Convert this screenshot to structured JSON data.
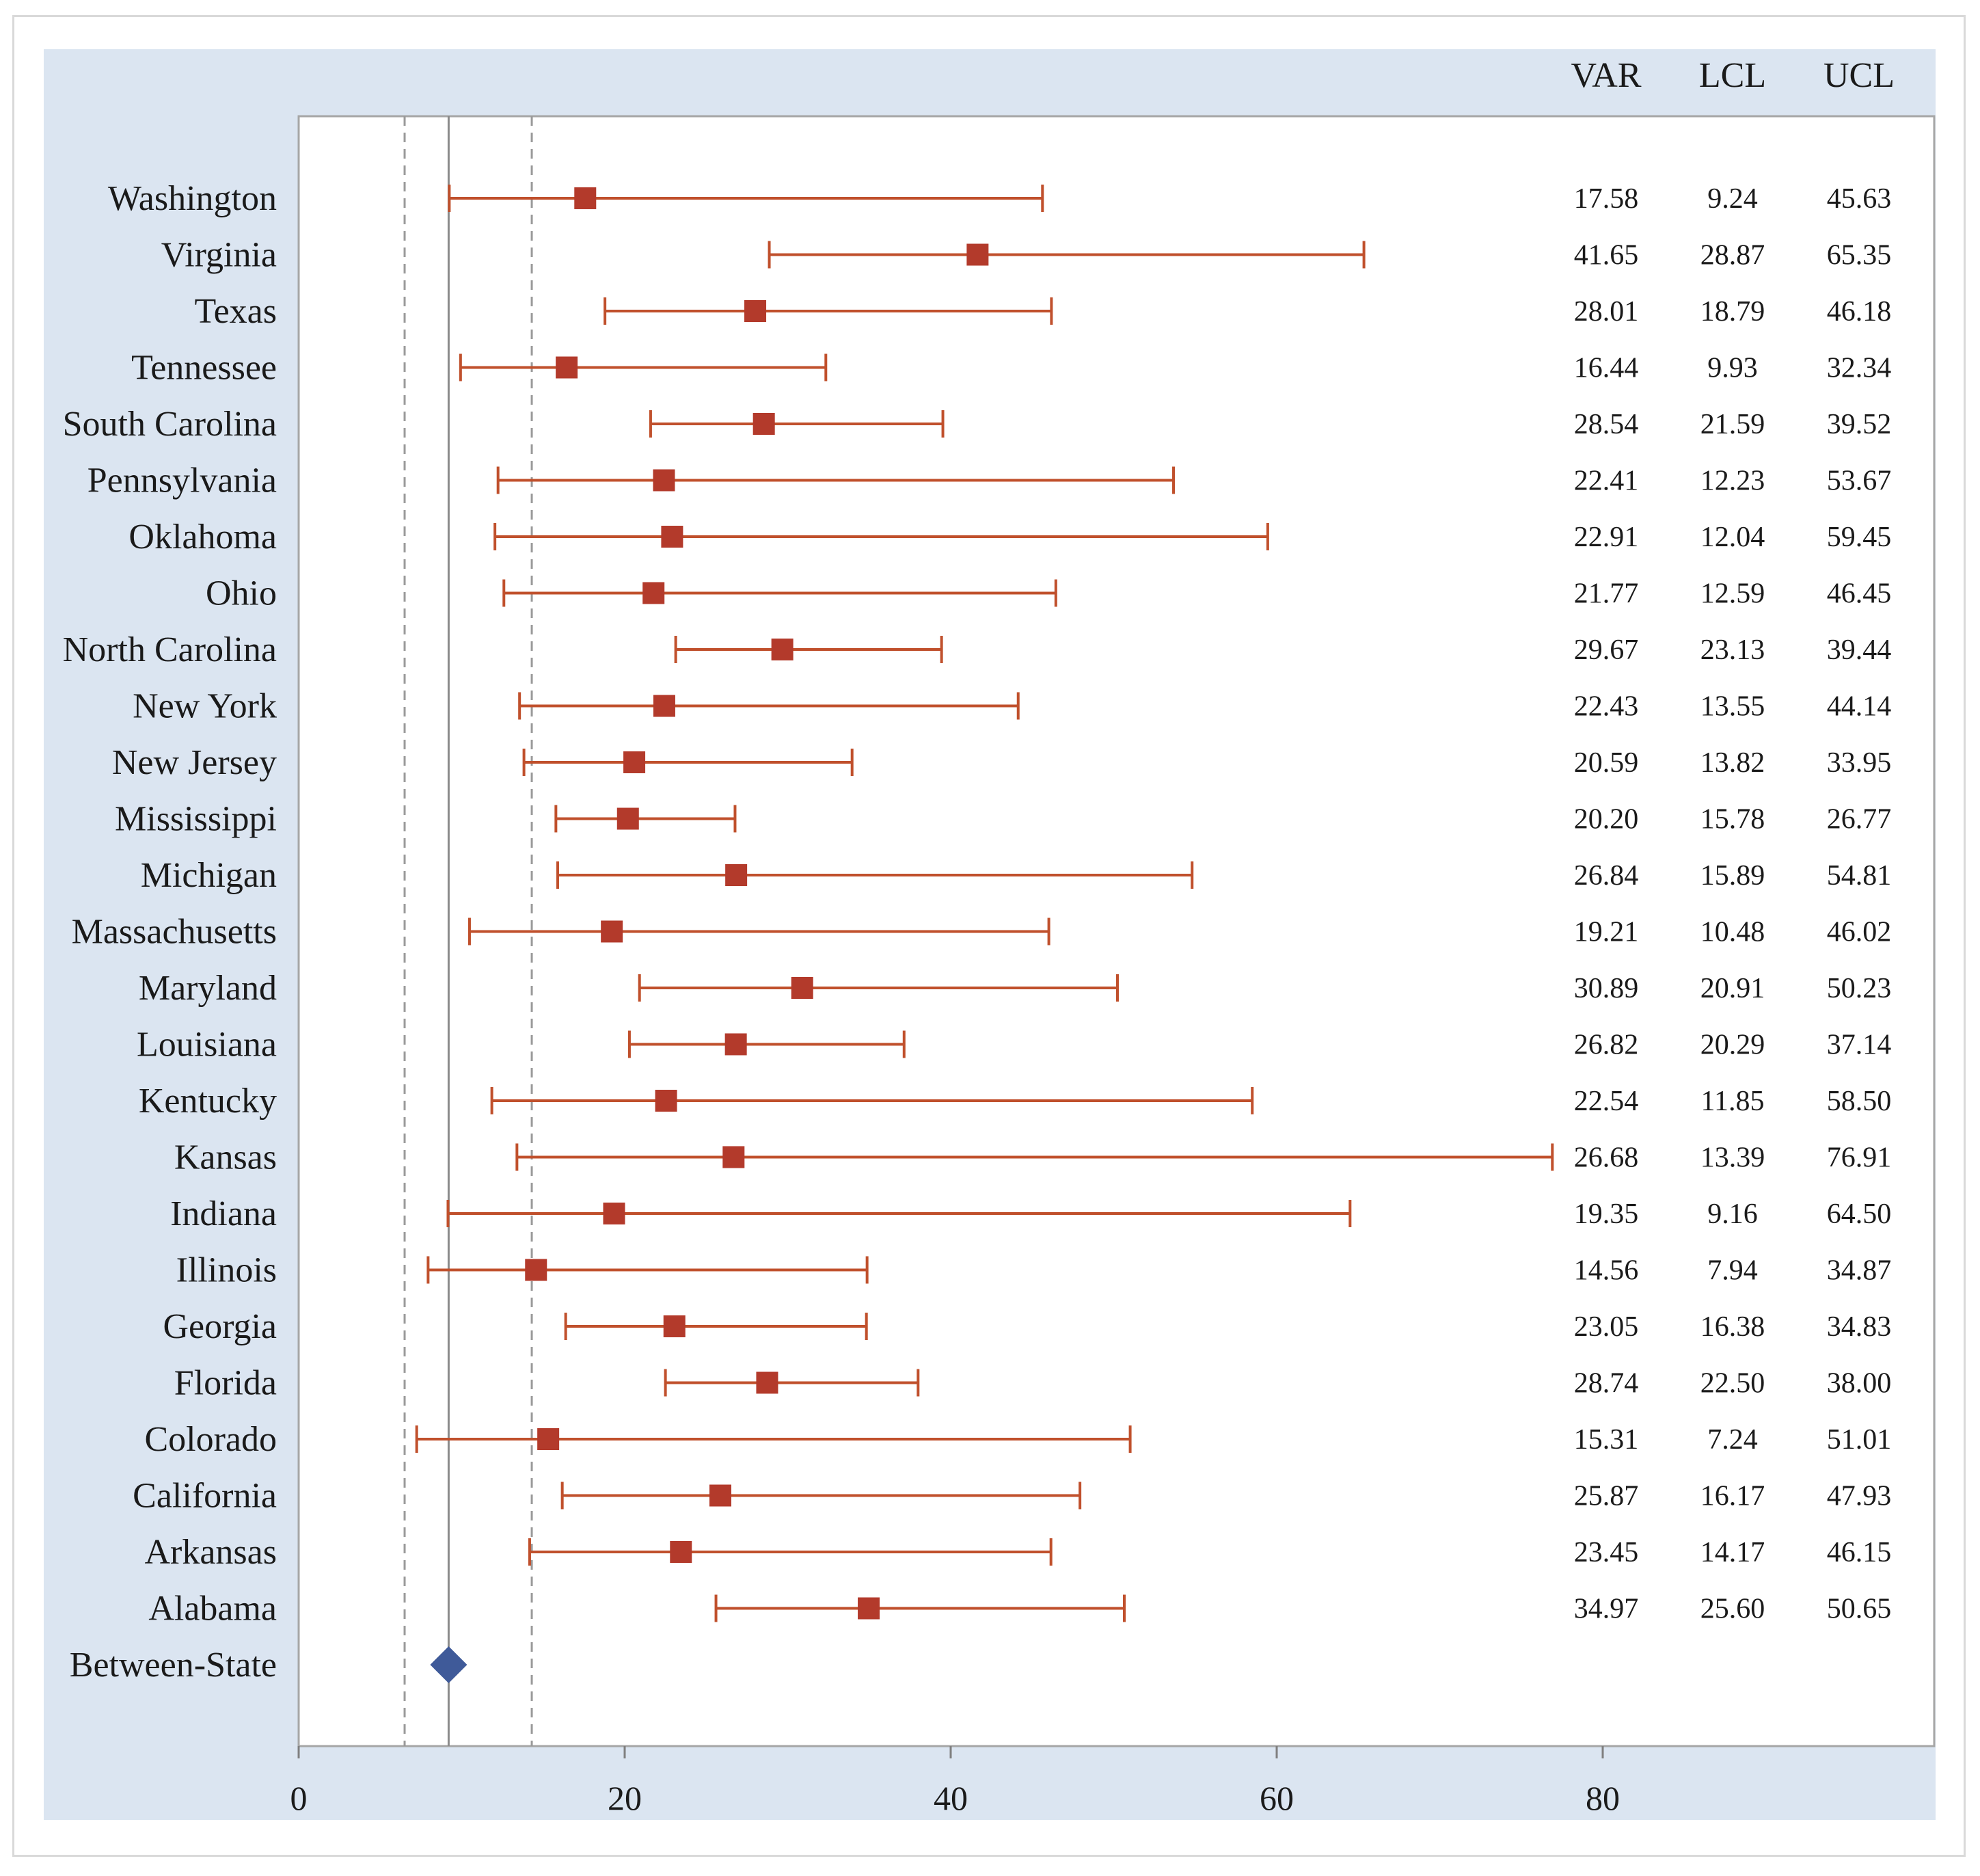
{
  "chart_data": {
    "type": "scatter",
    "subtype": "forest-plot",
    "title": "",
    "xlabel": "",
    "ylabel": "",
    "xlim": [
      0,
      100
    ],
    "x_ticks": [
      0,
      20,
      40,
      60,
      80
    ],
    "grid": false,
    "legend": "none",
    "column_headers": [
      "VAR",
      "LCL",
      "UCL"
    ],
    "reference_lines": {
      "solid": 9.2,
      "dashed": [
        6.5,
        14.3
      ]
    },
    "colors": {
      "panel_background": "#dbe5f1",
      "state_marker": "#b33a2b",
      "interval_line": "#c0502c",
      "between_marker": "#3f5a99",
      "reference_line": "#9a9a9a"
    },
    "rows": [
      {
        "label": "Washington",
        "var": 17.58,
        "lcl": 9.24,
        "ucl": 45.63,
        "var_text": "17.58",
        "lcl_text": "9.24",
        "ucl_text": "45.63"
      },
      {
        "label": "Virginia",
        "var": 41.65,
        "lcl": 28.87,
        "ucl": 65.35,
        "var_text": "41.65",
        "lcl_text": "28.87",
        "ucl_text": "65.35"
      },
      {
        "label": "Texas",
        "var": 28.01,
        "lcl": 18.79,
        "ucl": 46.18,
        "var_text": "28.01",
        "lcl_text": "18.79",
        "ucl_text": "46.18"
      },
      {
        "label": "Tennessee",
        "var": 16.44,
        "lcl": 9.93,
        "ucl": 32.34,
        "var_text": "16.44",
        "lcl_text": "9.93",
        "ucl_text": "32.34"
      },
      {
        "label": "South Carolina",
        "var": 28.54,
        "lcl": 21.59,
        "ucl": 39.52,
        "var_text": "28.54",
        "lcl_text": "21.59",
        "ucl_text": "39.52"
      },
      {
        "label": "Pennsylvania",
        "var": 22.41,
        "lcl": 12.23,
        "ucl": 53.67,
        "var_text": "22.41",
        "lcl_text": "12.23",
        "ucl_text": "53.67"
      },
      {
        "label": "Oklahoma",
        "var": 22.91,
        "lcl": 12.04,
        "ucl": 59.45,
        "var_text": "22.91",
        "lcl_text": "12.04",
        "ucl_text": "59.45"
      },
      {
        "label": "Ohio",
        "var": 21.77,
        "lcl": 12.59,
        "ucl": 46.45,
        "var_text": "21.77",
        "lcl_text": "12.59",
        "ucl_text": "46.45"
      },
      {
        "label": "North Carolina",
        "var": 29.67,
        "lcl": 23.13,
        "ucl": 39.44,
        "var_text": "29.67",
        "lcl_text": "23.13",
        "ucl_text": "39.44"
      },
      {
        "label": "New York",
        "var": 22.43,
        "lcl": 13.55,
        "ucl": 44.14,
        "var_text": "22.43",
        "lcl_text": "13.55",
        "ucl_text": "44.14"
      },
      {
        "label": "New Jersey",
        "var": 20.59,
        "lcl": 13.82,
        "ucl": 33.95,
        "var_text": "20.59",
        "lcl_text": "13.82",
        "ucl_text": "33.95"
      },
      {
        "label": "Mississippi",
        "var": 20.2,
        "lcl": 15.78,
        "ucl": 26.77,
        "var_text": "20.20",
        "lcl_text": "15.78",
        "ucl_text": "26.77"
      },
      {
        "label": "Michigan",
        "var": 26.84,
        "lcl": 15.89,
        "ucl": 54.81,
        "var_text": "26.84",
        "lcl_text": "15.89",
        "ucl_text": "54.81"
      },
      {
        "label": "Massachusetts",
        "var": 19.21,
        "lcl": 10.48,
        "ucl": 46.02,
        "var_text": "19.21",
        "lcl_text": "10.48",
        "ucl_text": "46.02"
      },
      {
        "label": "Maryland",
        "var": 30.89,
        "lcl": 20.91,
        "ucl": 50.23,
        "var_text": "30.89",
        "lcl_text": "20.91",
        "ucl_text": "50.23"
      },
      {
        "label": "Louisiana",
        "var": 26.82,
        "lcl": 20.29,
        "ucl": 37.14,
        "var_text": "26.82",
        "lcl_text": "20.29",
        "ucl_text": "37.14"
      },
      {
        "label": "Kentucky",
        "var": 22.54,
        "lcl": 11.85,
        "ucl": 58.5,
        "var_text": "22.54",
        "lcl_text": "11.85",
        "ucl_text": "58.50"
      },
      {
        "label": "Kansas",
        "var": 26.68,
        "lcl": 13.39,
        "ucl": 76.91,
        "var_text": "26.68",
        "lcl_text": "13.39",
        "ucl_text": "76.91"
      },
      {
        "label": "Indiana",
        "var": 19.35,
        "lcl": 9.16,
        "ucl": 64.5,
        "var_text": "19.35",
        "lcl_text": "9.16",
        "ucl_text": "64.50"
      },
      {
        "label": "Illinois",
        "var": 14.56,
        "lcl": 7.94,
        "ucl": 34.87,
        "var_text": "14.56",
        "lcl_text": "7.94",
        "ucl_text": "34.87"
      },
      {
        "label": "Georgia",
        "var": 23.05,
        "lcl": 16.38,
        "ucl": 34.83,
        "var_text": "23.05",
        "lcl_text": "16.38",
        "ucl_text": "34.83"
      },
      {
        "label": "Florida",
        "var": 28.74,
        "lcl": 22.5,
        "ucl": 38.0,
        "var_text": "28.74",
        "lcl_text": "22.50",
        "ucl_text": "38.00"
      },
      {
        "label": "Colorado",
        "var": 15.31,
        "lcl": 7.24,
        "ucl": 51.01,
        "var_text": "15.31",
        "lcl_text": "7.24",
        "ucl_text": "51.01"
      },
      {
        "label": "California",
        "var": 25.87,
        "lcl": 16.17,
        "ucl": 47.93,
        "var_text": "25.87",
        "lcl_text": "16.17",
        "ucl_text": "47.93"
      },
      {
        "label": "Arkansas",
        "var": 23.45,
        "lcl": 14.17,
        "ucl": 46.15,
        "var_text": "23.45",
        "lcl_text": "14.17",
        "ucl_text": "46.15"
      },
      {
        "label": "Alabama",
        "var": 34.97,
        "lcl": 25.6,
        "ucl": 50.65,
        "var_text": "34.97",
        "lcl_text": "25.60",
        "ucl_text": "50.65"
      }
    ],
    "between_state": {
      "label": "Between-State",
      "var": 9.2
    }
  }
}
